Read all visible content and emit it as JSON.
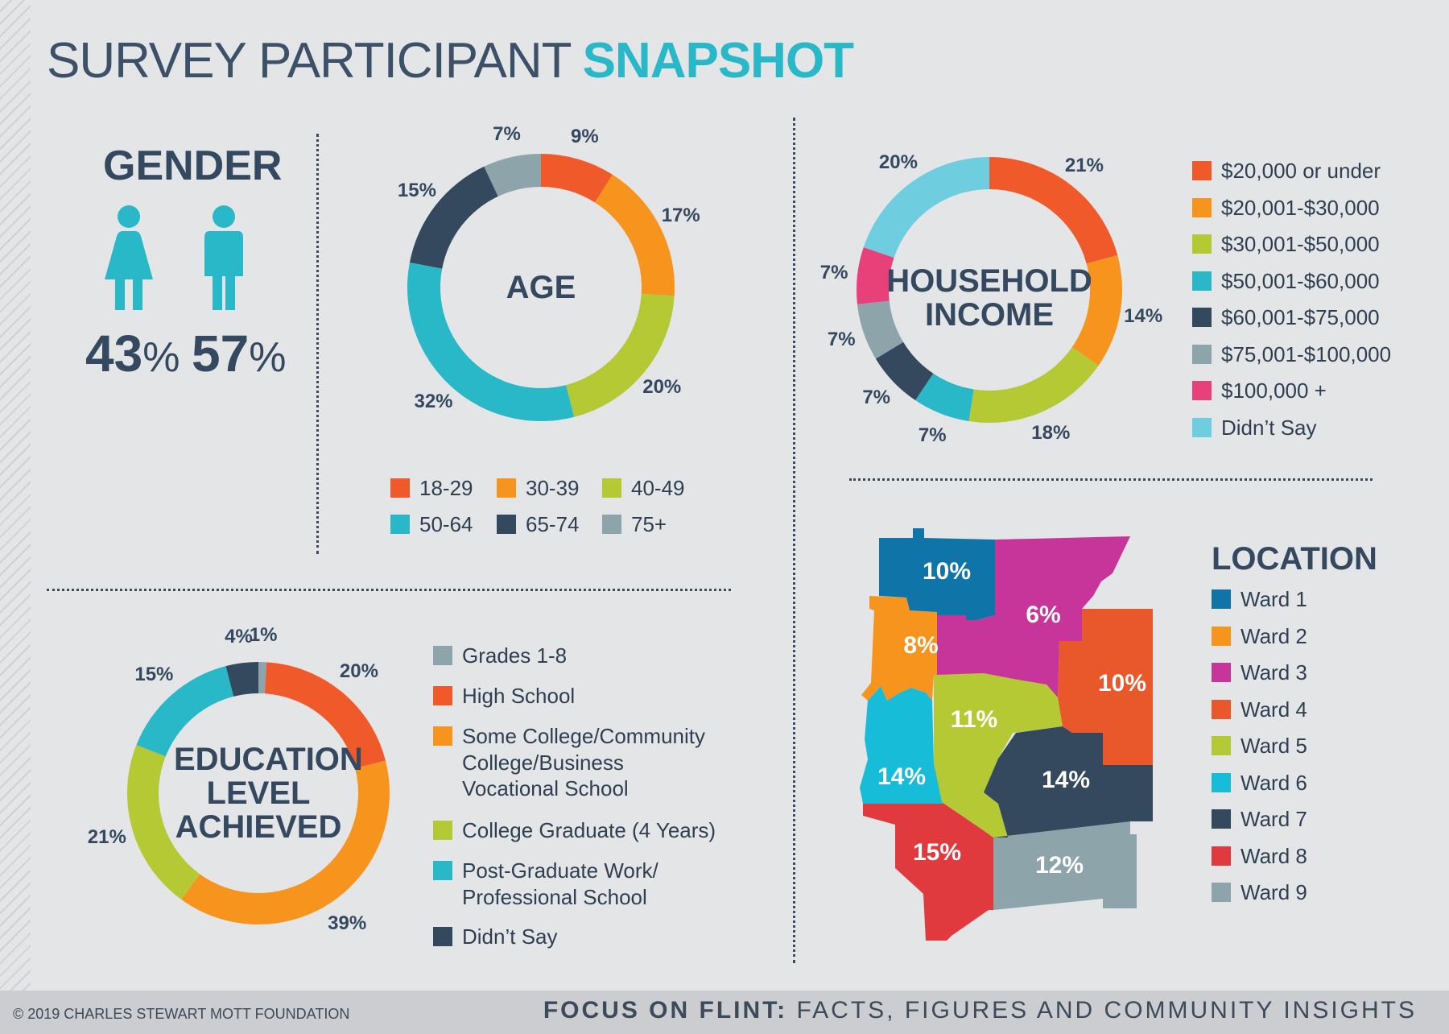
{
  "title": {
    "part1": "SURVEY PARTICIPANT",
    "part2": "SNAPSHOT"
  },
  "gender": {
    "title": "GENDER",
    "female_pct": "43",
    "male_pct": "57",
    "percent_symbol": "%",
    "icon_color": "#29b8c8"
  },
  "footer": {
    "copyright": "© 2019 CHARLES STEWART MOTT FOUNDATION",
    "tagline_bold": "FOCUS ON FLINT:",
    "tagline_rest": " FACTS, FIGURES AND COMMUNITY INSIGHTS"
  },
  "chart_data": [
    {
      "type": "pie",
      "title": "AGE",
      "labels": [
        "18-29",
        "30-39",
        "40-49",
        "50-64",
        "65-74",
        "75+"
      ],
      "values": [
        9,
        17,
        20,
        32,
        15,
        7
      ],
      "value_labels": [
        "9%",
        "17%",
        "20%",
        "32%",
        "15%",
        "7%"
      ],
      "colors": [
        "#f05a2b",
        "#f7941d",
        "#b5c935",
        "#29b8c8",
        "#34495e",
        "#8da4ab"
      ],
      "legend_position": "bottom"
    },
    {
      "type": "pie",
      "title": "HOUSEHOLD INCOME",
      "labels": [
        "$20,000 or under",
        "$20,001-$30,000",
        "$30,001-$50,000",
        "$50,001-$60,000",
        "$60,001-$75,000",
        "$75,001-$100,000",
        "$100,000 +",
        "Didn’t Say"
      ],
      "values": [
        21,
        14,
        18,
        7,
        7,
        7,
        7,
        20
      ],
      "value_labels": [
        "21%",
        "14%",
        "18%",
        "7%",
        "7%",
        "7%",
        "7%",
        "20%"
      ],
      "colors": [
        "#f05a2b",
        "#f7941d",
        "#b5c935",
        "#29b8c8",
        "#34495e",
        "#8da4ab",
        "#e8417a",
        "#6fcde0"
      ],
      "legend_position": "right"
    },
    {
      "type": "pie",
      "title": "EDUCATION LEVEL ACHIEVED",
      "labels": [
        "Grades 1-8",
        "High School",
        "Some College/Community College/Business Vocational School",
        "College Graduate (4 Years)",
        "Post-Graduate Work/ Professional School",
        "Didn’t Say"
      ],
      "legend_lines": [
        [
          "Grades 1-8"
        ],
        [
          "High School"
        ],
        [
          "Some College/Community",
          "College/Business",
          "Vocational School"
        ],
        [
          "College Graduate (4 Years)"
        ],
        [
          "Post-Graduate Work/",
          "Professional School"
        ],
        [
          "Didn’t Say"
        ]
      ],
      "values": [
        1,
        20,
        39,
        21,
        15,
        4
      ],
      "value_labels": [
        "1%",
        "20%",
        "39%",
        "21%",
        "15%",
        "4%"
      ],
      "colors": [
        "#8da4ab",
        "#f05a2b",
        "#f7941d",
        "#b5c935",
        "#29b8c8",
        "#34495e"
      ],
      "legend_position": "right"
    },
    {
      "type": "map",
      "title": "LOCATION",
      "labels": [
        "Ward 1",
        "Ward 2",
        "Ward 3",
        "Ward 4",
        "Ward 5",
        "Ward 6",
        "Ward 7",
        "Ward 8",
        "Ward 9"
      ],
      "values": [
        10,
        8,
        6,
        10,
        11,
        14,
        14,
        15,
        12
      ],
      "value_labels": [
        "10%",
        "8%",
        "6%",
        "10%",
        "11%",
        "14%",
        "14%",
        "15%",
        "12%"
      ],
      "colors": [
        "#0f75a8",
        "#f7941d",
        "#c7359a",
        "#e8582a",
        "#b5c935",
        "#17bcd8",
        "#34495e",
        "#e03a3e",
        "#8da4ab"
      ],
      "legend_position": "right"
    }
  ]
}
